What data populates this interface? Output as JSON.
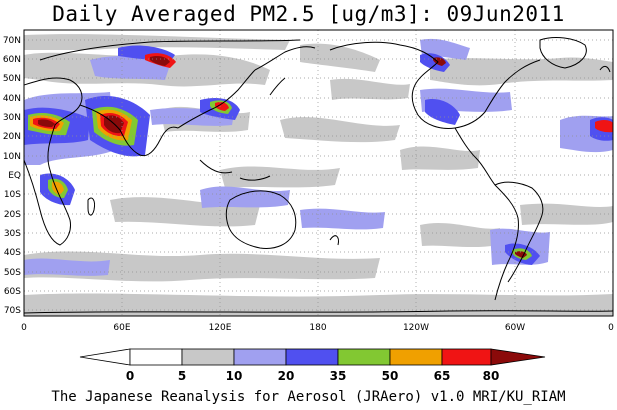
{
  "figure": {
    "title": "Daily Averaged PM2.5 [ug/m3]: 09Jun2011",
    "credit": "The Japanese Reanalysis for Aerosol (JRAero) v1.0 MRI/KU_RIAM"
  },
  "lat_labels": [
    "70N",
    "60N",
    "50N",
    "40N",
    "30N",
    "20N",
    "10N",
    "EQ",
    "10S",
    "20S",
    "30S",
    "40S",
    "50S",
    "60S",
    "70S"
  ],
  "lon_labels": [
    "0",
    "60E",
    "120E",
    "180",
    "120W",
    "60W",
    "0"
  ],
  "colorbar": {
    "ticks": [
      "0",
      "5",
      "10",
      "20",
      "35",
      "50",
      "65",
      "80"
    ],
    "colors": [
      "#ffffff",
      "#ffffff",
      "#c8c8c8",
      "#a0a0f0",
      "#5050f0",
      "#82c832",
      "#f0a000",
      "#f01414",
      "#8b0a0a"
    ]
  }
}
